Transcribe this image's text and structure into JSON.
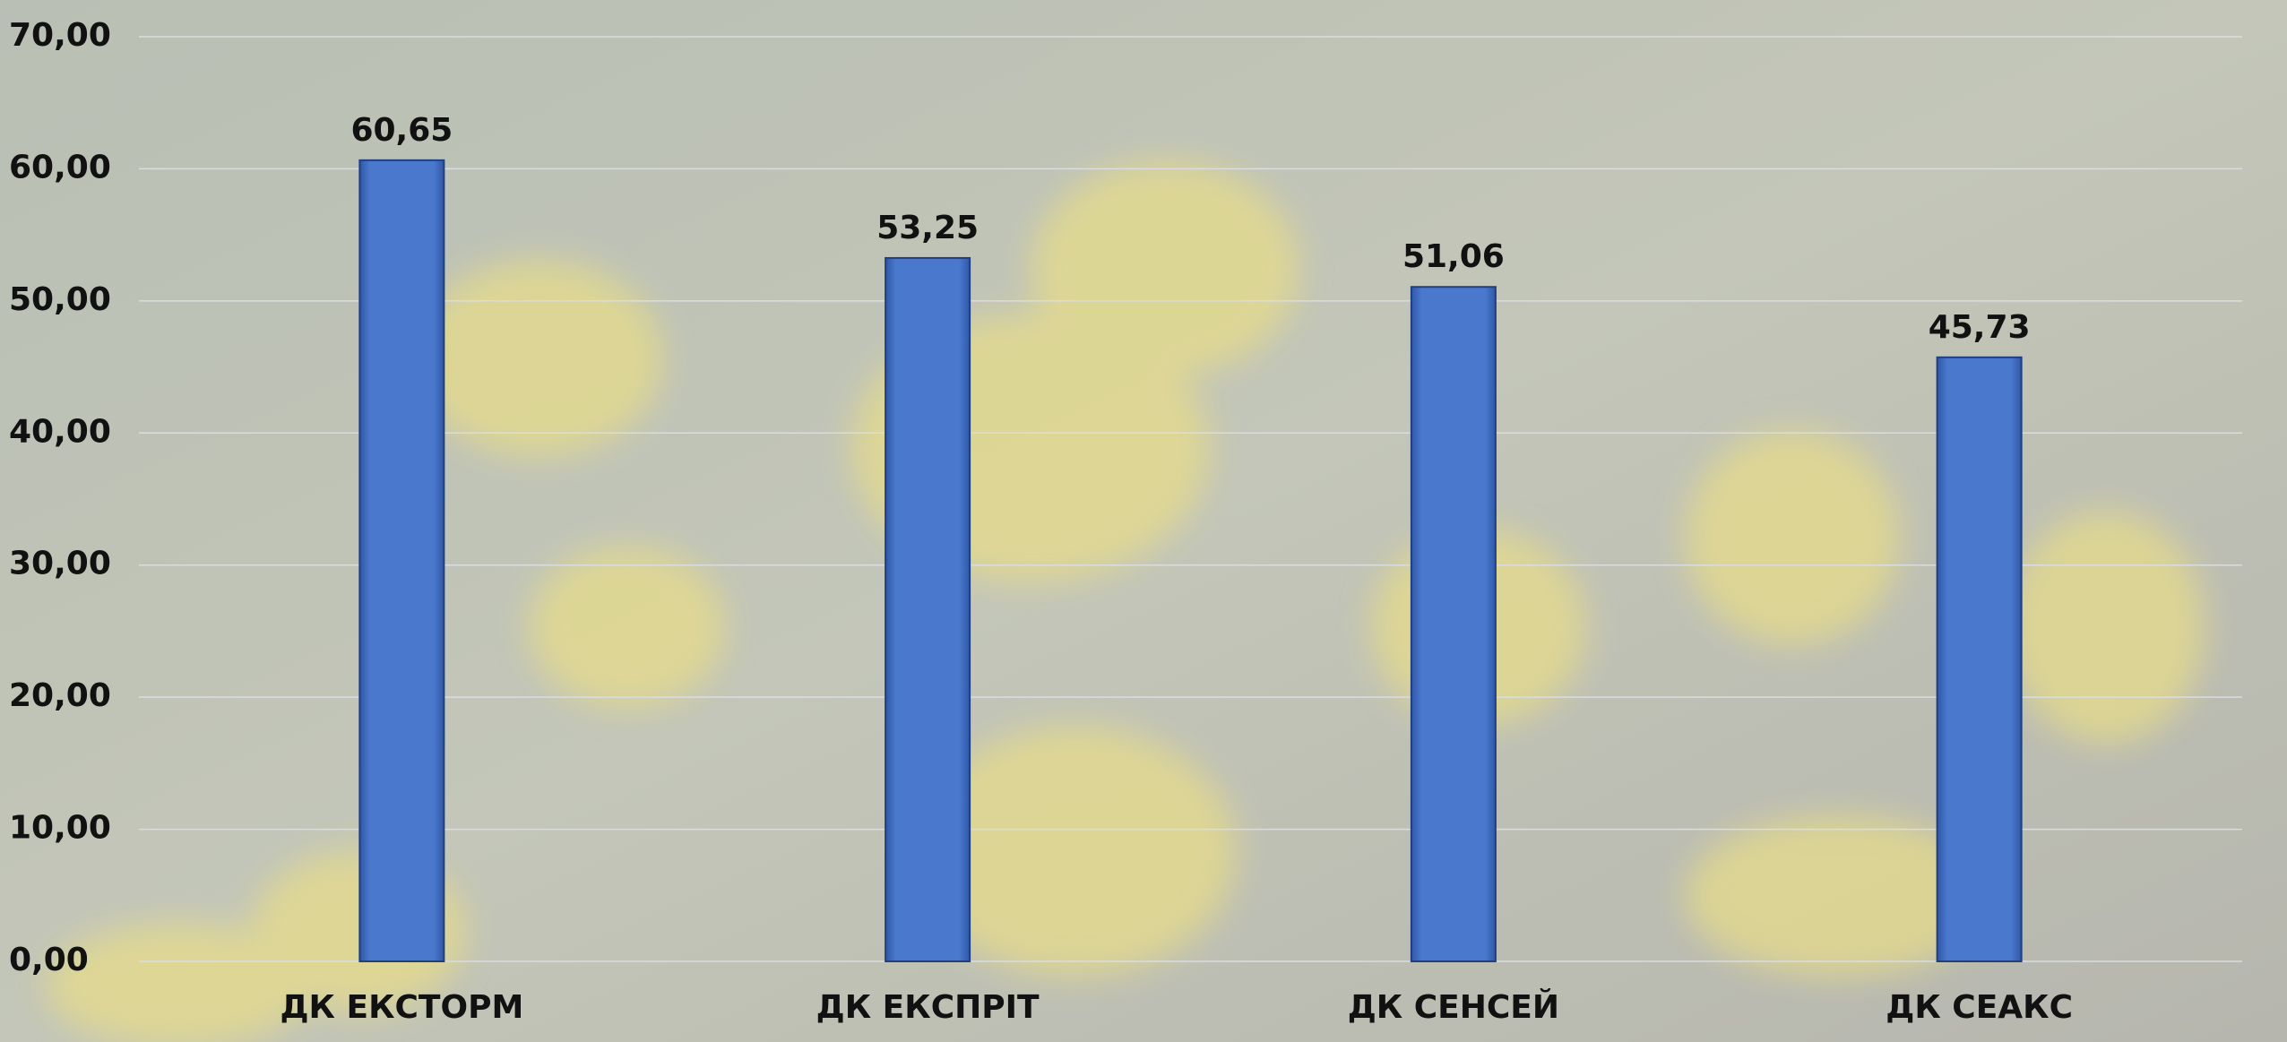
{
  "chart_data": {
    "type": "bar",
    "categories": [
      "ДК ЕКСТОРМ",
      "ДК ЕКСПРІТ",
      "ДК СЕНСЕЙ",
      "ДК СЕАКС"
    ],
    "values": [
      60.65,
      53.25,
      51.06,
      45.73
    ],
    "value_labels": [
      "60,65",
      "53,25",
      "51,06",
      "45,73"
    ],
    "color": "#4472c4",
    "ylim": [
      0,
      70
    ],
    "yticks": [
      {
        "value": 0,
        "label": "0,00"
      },
      {
        "value": 10,
        "label": "10,00"
      },
      {
        "value": 20,
        "label": "20,00"
      },
      {
        "value": 30,
        "label": "30,00"
      },
      {
        "value": 40,
        "label": "40,00"
      },
      {
        "value": 50,
        "label": "50,00"
      },
      {
        "value": 60,
        "label": "60,00"
      },
      {
        "value": 70,
        "label": "70,00"
      }
    ],
    "grid": true
  }
}
